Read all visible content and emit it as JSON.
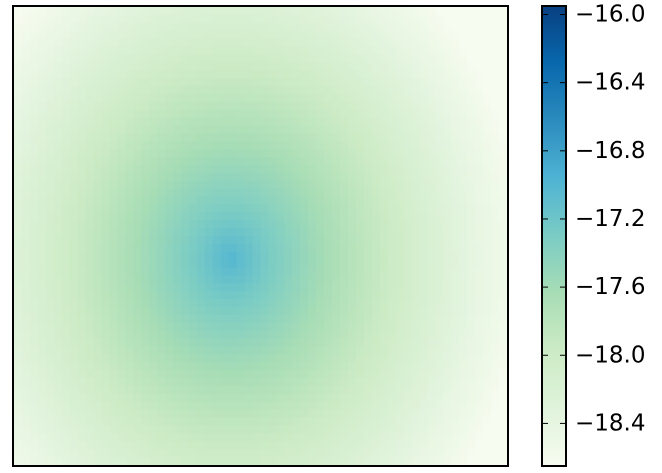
{
  "chart_data": {
    "type": "heatmap",
    "title": "",
    "xlabel": "",
    "ylabel": "",
    "xticks": [],
    "yticks": [],
    "field": {
      "shape": "radial peak",
      "peak_value": -17.0,
      "edge_value": -18.65,
      "center": [
        0.44,
        0.55
      ]
    },
    "colorbar": {
      "label": "",
      "range": [
        -18.65,
        -15.95
      ],
      "ticks": [
        -16.0,
        -16.4,
        -16.8,
        -17.2,
        -17.6,
        -18.0,
        -18.4
      ],
      "tick_labels": [
        "−16.0",
        "−16.4",
        "−16.8",
        "−17.2",
        "−17.6",
        "−18.0",
        "−18.4"
      ],
      "colormap": "GnBu",
      "colormap_stops": [
        "#f7fcf0",
        "#e0f3db",
        "#ccebc5",
        "#a8ddb5",
        "#7bccc4",
        "#4eb3d3",
        "#2b8cbe",
        "#0868ac",
        "#084081"
      ]
    }
  }
}
